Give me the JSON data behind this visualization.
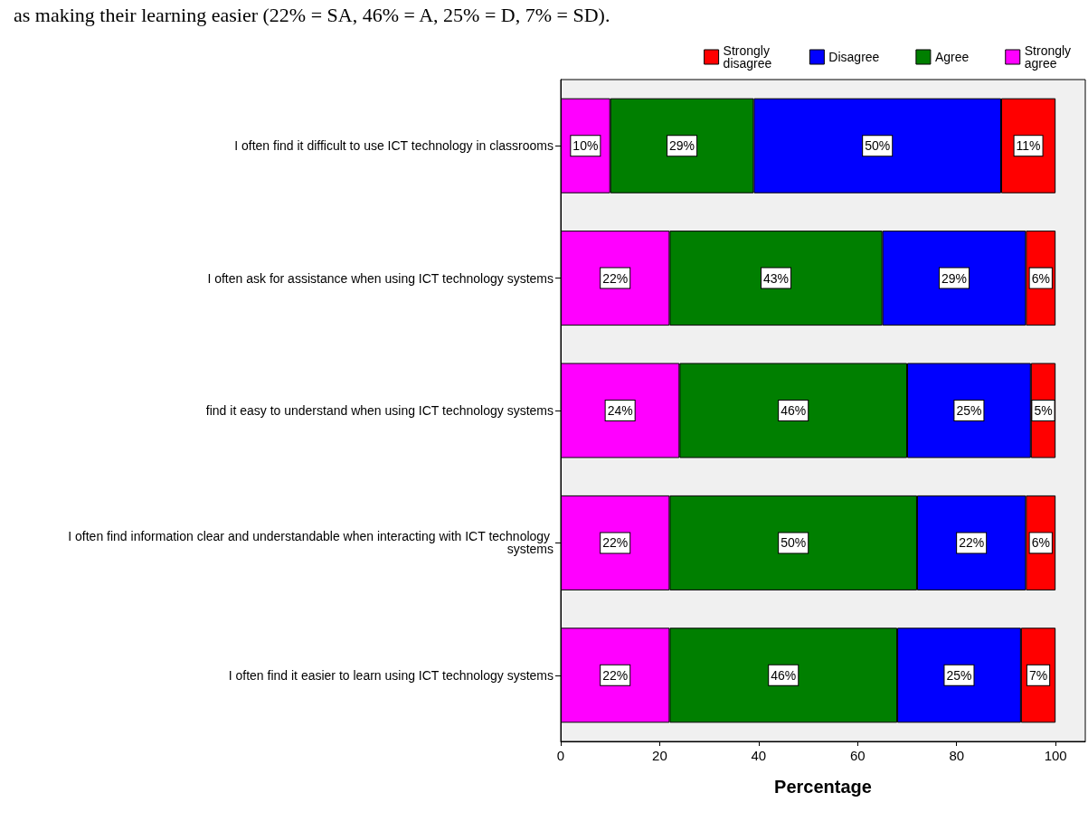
{
  "chart_data": {
    "type": "bar",
    "orientation": "horizontal",
    "stacked": true,
    "categories": [
      "I often find it difficult to use ICT technology in classrooms",
      "I often ask for assistance when using ICT technology systems",
      "find it easy to understand when using ICT technology systems",
      "I often find information clear and understandable when interacting with ICT technology systems",
      "I often find it easier to learn using ICT technology systems"
    ],
    "series": [
      {
        "name": "Strongly agree",
        "color": "#ff00ff",
        "values": [
          10,
          22,
          24,
          22,
          22
        ],
        "value_labels": [
          "10%",
          "22%",
          "24%",
          "22%",
          "22%"
        ]
      },
      {
        "name": "Agree",
        "color": "#007f00",
        "values": [
          29,
          43,
          46,
          50,
          46
        ],
        "value_labels": [
          "29%",
          "43%",
          "46%",
          "50%",
          "46%"
        ]
      },
      {
        "name": "Disagree",
        "color": "#0000ff",
        "values": [
          50,
          29,
          25,
          22,
          25
        ],
        "value_labels": [
          "50%",
          "29%",
          "25%",
          "22%",
          "25%"
        ]
      },
      {
        "name": "Strongly disagree",
        "color": "#ff0000",
        "values": [
          11,
          6,
          5,
          6,
          7
        ],
        "value_labels": [
          "11%",
          "6%",
          "5%",
          "6%",
          "7%"
        ]
      }
    ],
    "xlabel": "Percentage",
    "xlim": [
      0,
      106
    ],
    "xticks": [
      0,
      20,
      40,
      60,
      80,
      100
    ],
    "legend": "top right",
    "grid": false,
    "annotations": [
      "as making their learning easier (22% = SA, 46% = A, 25% = D, 7% = SD)."
    ]
  }
}
